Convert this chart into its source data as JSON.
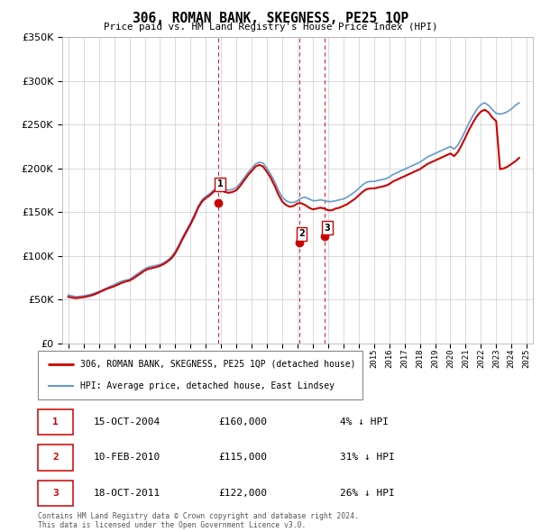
{
  "title": "306, ROMAN BANK, SKEGNESS, PE25 1QP",
  "subtitle": "Price paid vs. HM Land Registry's House Price Index (HPI)",
  "legend_line1": "306, ROMAN BANK, SKEGNESS, PE25 1QP (detached house)",
  "legend_line2": "HPI: Average price, detached house, East Lindsey",
  "footer": "Contains HM Land Registry data © Crown copyright and database right 2024.\nThis data is licensed under the Open Government Licence v3.0.",
  "property_color": "#cc0000",
  "hpi_color": "#6699cc",
  "marker_color": "#cc0000",
  "background_color": "#ffffff",
  "grid_color": "#cccccc",
  "ylim": [
    0,
    350000
  ],
  "yticks": [
    0,
    50000,
    100000,
    150000,
    200000,
    250000,
    300000,
    350000
  ],
  "ytick_labels": [
    "£0",
    "£50K",
    "£100K",
    "£150K",
    "£200K",
    "£250K",
    "£300K",
    "£350K"
  ],
  "sales": [
    {
      "label": "1",
      "date": "15-OCT-2004",
      "price": 160000,
      "pct": "4%",
      "x": 2004.79
    },
    {
      "label": "2",
      "date": "10-FEB-2010",
      "price": 115000,
      "pct": "31%",
      "x": 2010.11
    },
    {
      "label": "3",
      "date": "18-OCT-2011",
      "price": 122000,
      "pct": "26%",
      "x": 2011.79
    }
  ],
  "table_rows": [
    [
      "1",
      "15-OCT-2004",
      "£160,000",
      "4% ↓ HPI"
    ],
    [
      "2",
      "10-FEB-2010",
      "£115,000",
      "31% ↓ HPI"
    ],
    [
      "3",
      "18-OCT-2011",
      "£122,000",
      "26% ↓ HPI"
    ]
  ],
  "hpi_data": {
    "x": [
      1995.0,
      1995.25,
      1995.5,
      1995.75,
      1996.0,
      1996.25,
      1996.5,
      1996.75,
      1997.0,
      1997.25,
      1997.5,
      1997.75,
      1998.0,
      1998.25,
      1998.5,
      1998.75,
      1999.0,
      1999.25,
      1999.5,
      1999.75,
      2000.0,
      2000.25,
      2000.5,
      2000.75,
      2001.0,
      2001.25,
      2001.5,
      2001.75,
      2002.0,
      2002.25,
      2002.5,
      2002.75,
      2003.0,
      2003.25,
      2003.5,
      2003.75,
      2004.0,
      2004.25,
      2004.5,
      2004.75,
      2005.0,
      2005.25,
      2005.5,
      2005.75,
      2006.0,
      2006.25,
      2006.5,
      2006.75,
      2007.0,
      2007.25,
      2007.5,
      2007.75,
      2008.0,
      2008.25,
      2008.5,
      2008.75,
      2009.0,
      2009.25,
      2009.5,
      2009.75,
      2010.0,
      2010.25,
      2010.5,
      2010.75,
      2011.0,
      2011.25,
      2011.5,
      2011.75,
      2012.0,
      2012.25,
      2012.5,
      2012.75,
      2013.0,
      2013.25,
      2013.5,
      2013.75,
      2014.0,
      2014.25,
      2014.5,
      2014.75,
      2015.0,
      2015.25,
      2015.5,
      2015.75,
      2016.0,
      2016.25,
      2016.5,
      2016.75,
      2017.0,
      2017.25,
      2017.5,
      2017.75,
      2018.0,
      2018.25,
      2018.5,
      2018.75,
      2019.0,
      2019.25,
      2019.5,
      2019.75,
      2020.0,
      2020.25,
      2020.5,
      2020.75,
      2021.0,
      2021.25,
      2021.5,
      2021.75,
      2022.0,
      2022.25,
      2022.5,
      2022.75,
      2023.0,
      2023.25,
      2023.5,
      2023.75,
      2024.0,
      2024.25,
      2024.5
    ],
    "y": [
      55000,
      54000,
      53000,
      53500,
      54000,
      55000,
      56000,
      57500,
      59000,
      61000,
      63000,
      65000,
      67000,
      69000,
      71000,
      72000,
      73000,
      76000,
      79000,
      82000,
      85000,
      87000,
      88000,
      89000,
      90000,
      92000,
      95000,
      99000,
      105000,
      113000,
      122000,
      130000,
      138000,
      147000,
      157000,
      164000,
      168000,
      171000,
      175000,
      179000,
      178000,
      176000,
      175000,
      176000,
      178000,
      183000,
      189000,
      195000,
      200000,
      205000,
      207000,
      206000,
      200000,
      193000,
      185000,
      175000,
      167000,
      163000,
      161000,
      161000,
      163000,
      166000,
      167000,
      165000,
      163000,
      163000,
      164000,
      163000,
      162000,
      162000,
      163000,
      164000,
      165000,
      167000,
      170000,
      173000,
      177000,
      181000,
      184000,
      185000,
      185000,
      186000,
      187000,
      188000,
      190000,
      193000,
      195000,
      197000,
      199000,
      201000,
      203000,
      205000,
      207000,
      210000,
      213000,
      215000,
      217000,
      219000,
      221000,
      223000,
      225000,
      222000,
      227000,
      235000,
      244000,
      253000,
      261000,
      268000,
      273000,
      275000,
      272000,
      267000,
      263000,
      262000,
      263000,
      265000,
      268000,
      272000,
      275000
    ]
  },
  "property_data": {
    "x": [
      1995.0,
      1995.25,
      1995.5,
      1995.75,
      1996.0,
      1996.25,
      1996.5,
      1996.75,
      1997.0,
      1997.25,
      1997.5,
      1997.75,
      1998.0,
      1998.25,
      1998.5,
      1998.75,
      1999.0,
      1999.25,
      1999.5,
      1999.75,
      2000.0,
      2000.25,
      2000.5,
      2000.75,
      2001.0,
      2001.25,
      2001.5,
      2001.75,
      2002.0,
      2002.25,
      2002.5,
      2002.75,
      2003.0,
      2003.25,
      2003.5,
      2003.75,
      2004.0,
      2004.25,
      2004.5,
      2004.75,
      2005.0,
      2005.25,
      2005.5,
      2005.75,
      2006.0,
      2006.25,
      2006.5,
      2006.75,
      2007.0,
      2007.25,
      2007.5,
      2007.75,
      2008.0,
      2008.25,
      2008.5,
      2008.75,
      2009.0,
      2009.25,
      2009.5,
      2009.75,
      2010.0,
      2010.25,
      2010.5,
      2010.75,
      2011.0,
      2011.25,
      2011.5,
      2011.75,
      2012.0,
      2012.25,
      2012.5,
      2012.75,
      2013.0,
      2013.25,
      2013.5,
      2013.75,
      2014.0,
      2014.25,
      2014.5,
      2014.75,
      2015.0,
      2015.25,
      2015.5,
      2015.75,
      2016.0,
      2016.25,
      2016.5,
      2016.75,
      2017.0,
      2017.25,
      2017.5,
      2017.75,
      2018.0,
      2018.25,
      2018.5,
      2018.75,
      2019.0,
      2019.25,
      2019.5,
      2019.75,
      2020.0,
      2020.25,
      2020.5,
      2020.75,
      2021.0,
      2021.25,
      2021.5,
      2021.75,
      2022.0,
      2022.25,
      2022.5,
      2022.75,
      2023.0,
      2023.25,
      2023.5,
      2023.75,
      2024.0,
      2024.25,
      2024.5
    ],
    "y": [
      53000,
      52000,
      51500,
      52000,
      52500,
      53500,
      54500,
      56000,
      58000,
      60000,
      62000,
      63500,
      65000,
      67000,
      69000,
      70500,
      71500,
      74000,
      77000,
      80000,
      83000,
      85000,
      86000,
      87000,
      88500,
      90500,
      93500,
      97000,
      103000,
      111000,
      120000,
      128000,
      136000,
      145000,
      155000,
      162000,
      166000,
      169000,
      173000,
      177000,
      175000,
      173000,
      172000,
      173000,
      175000,
      180000,
      186000,
      192000,
      197000,
      202000,
      204000,
      202000,
      196000,
      189000,
      180000,
      170000,
      162000,
      158000,
      156000,
      157000,
      160000,
      160000,
      158000,
      155000,
      153000,
      154000,
      155000,
      154000,
      152000,
      152000,
      154000,
      155000,
      157000,
      159000,
      162000,
      165000,
      169000,
      173000,
      176000,
      177000,
      177000,
      178000,
      179000,
      180000,
      182000,
      185000,
      187000,
      189000,
      191000,
      193000,
      195000,
      197000,
      199000,
      202000,
      205000,
      207000,
      209000,
      211000,
      213000,
      215000,
      217000,
      214000,
      219000,
      227000,
      236000,
      245000,
      253000,
      260000,
      265000,
      267000,
      264000,
      258000,
      254000,
      199000,
      200000,
      202000,
      205000,
      208000,
      212000
    ]
  }
}
